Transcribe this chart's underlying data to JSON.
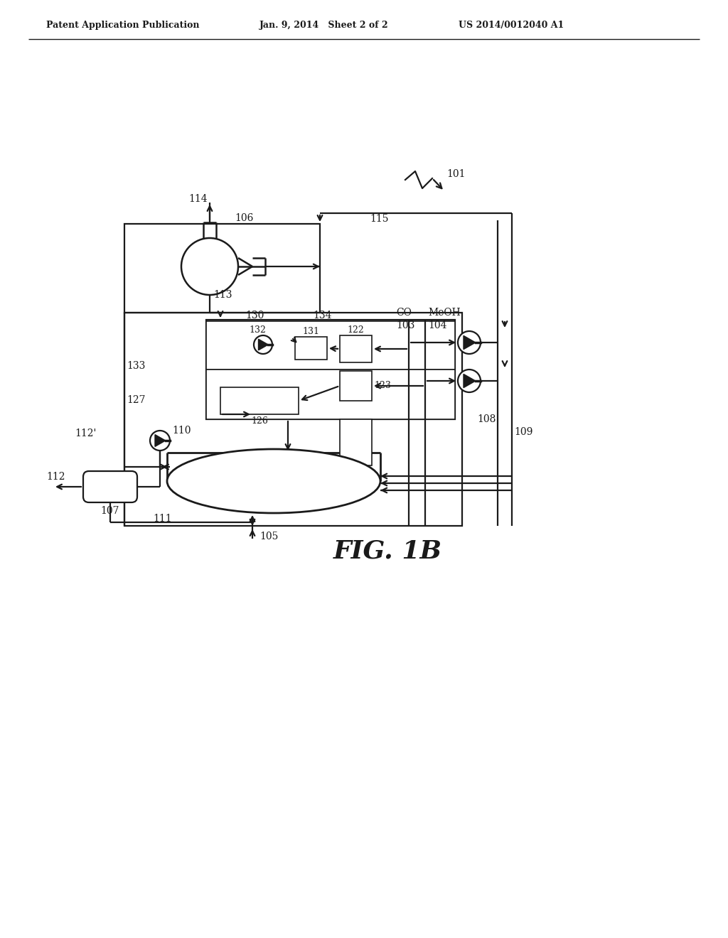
{
  "bg_color": "#ffffff",
  "lc": "#1a1a1a",
  "header_left": "Patent Application Publication",
  "header_mid": "Jan. 9, 2014   Sheet 2 of 2",
  "header_right": "US 2014/0012040 A1",
  "fig_label": "FIG. 1B"
}
